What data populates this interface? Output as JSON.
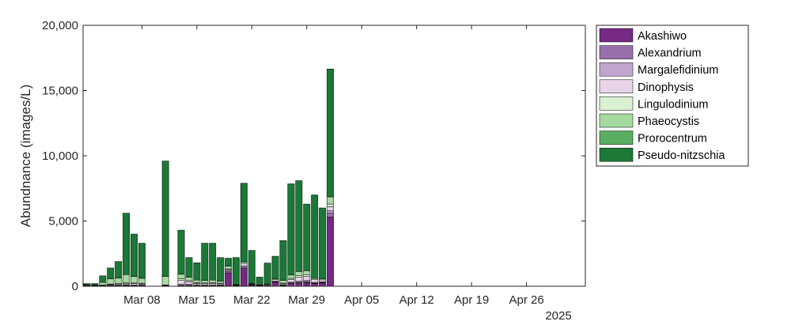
{
  "chart_data": {
    "type": "bar",
    "stacked": true,
    "ylabel": "Abundnance (images/L)",
    "ylim": [
      0,
      20000
    ],
    "yticks": [
      0,
      5000,
      10000,
      15000,
      20000
    ],
    "ytick_labels": [
      "0",
      "5,000",
      "10,000",
      "15,000",
      "20,000"
    ],
    "xlim": [
      "2025-03-01",
      "2025-05-03"
    ],
    "xticks": [
      "2025-03-08",
      "2025-03-15",
      "2025-03-22",
      "2025-03-29",
      "2025-04-05",
      "2025-04-12",
      "2025-04-19",
      "2025-04-26"
    ],
    "xtick_labels": [
      "Mar 08",
      "Mar 15",
      "Mar 22",
      "Mar 29",
      "Apr 05",
      "Apr 12",
      "Apr 19",
      "Apr 26"
    ],
    "x_secondary_label": "2025",
    "legend_position": "outside-top-right",
    "grid": false,
    "x": [
      "2025-03-01",
      "2025-03-02",
      "2025-03-03",
      "2025-03-04",
      "2025-03-05",
      "2025-03-06",
      "2025-03-07",
      "2025-03-08",
      "2025-03-11",
      "2025-03-13",
      "2025-03-14",
      "2025-03-15",
      "2025-03-16",
      "2025-03-17",
      "2025-03-18",
      "2025-03-19",
      "2025-03-20",
      "2025-03-21",
      "2025-03-22",
      "2025-03-23",
      "2025-03-24",
      "2025-03-25",
      "2025-03-26",
      "2025-03-27",
      "2025-03-28",
      "2025-03-29",
      "2025-03-30",
      "2025-03-31",
      "2025-04-01"
    ],
    "series": [
      {
        "name": "Akashiwo",
        "color": "#762a83",
        "values": [
          30,
          30,
          20,
          30,
          30,
          40,
          30,
          30,
          20,
          40,
          40,
          30,
          30,
          30,
          40,
          1000,
          20,
          1350,
          80,
          30,
          30,
          300,
          50,
          200,
          250,
          300,
          200,
          250,
          5300
        ]
      },
      {
        "name": "Alexandrium",
        "color": "#9970ab",
        "values": [
          20,
          10,
          10,
          20,
          20,
          30,
          20,
          20,
          10,
          30,
          30,
          20,
          20,
          20,
          20,
          100,
          10,
          100,
          20,
          10,
          20,
          50,
          20,
          50,
          60,
          60,
          40,
          40,
          300
        ]
      },
      {
        "name": "Margalefidinium",
        "color": "#c2a5cf",
        "values": [
          10,
          10,
          10,
          30,
          40,
          60,
          50,
          40,
          20,
          100,
          80,
          60,
          50,
          60,
          50,
          80,
          20,
          100,
          30,
          20,
          30,
          50,
          40,
          60,
          70,
          80,
          60,
          50,
          200
        ]
      },
      {
        "name": "Dinophysis",
        "color": "#e7d4e8",
        "values": [
          20,
          10,
          20,
          50,
          80,
          100,
          100,
          80,
          30,
          300,
          200,
          100,
          100,
          100,
          80,
          100,
          30,
          200,
          50,
          30,
          60,
          100,
          80,
          200,
          300,
          300,
          200,
          150,
          300
        ]
      },
      {
        "name": "Lingulodinium",
        "color": "#d9f0d3",
        "values": [
          10,
          10,
          30,
          40,
          50,
          60,
          50,
          40,
          20,
          100,
          80,
          60,
          50,
          60,
          50,
          50,
          30,
          100,
          40,
          20,
          30,
          60,
          50,
          100,
          150,
          150,
          100,
          80,
          200
        ]
      },
      {
        "name": "Phaeocystis",
        "color": "#a6dba0",
        "values": [
          50,
          40,
          200,
          400,
          400,
          600,
          500,
          400,
          650,
          350,
          250,
          200,
          200,
          200,
          150,
          200,
          50,
          0,
          0,
          0,
          0,
          0,
          200,
          250,
          300,
          300,
          0,
          0,
          550
        ]
      },
      {
        "name": "Prorocentrum",
        "color": "#5aae61",
        "values": [
          0,
          0,
          0,
          0,
          0,
          0,
          0,
          0,
          0,
          0,
          0,
          0,
          0,
          0,
          0,
          0,
          0,
          0,
          0,
          0,
          0,
          0,
          0,
          0,
          0,
          0,
          0,
          0,
          0
        ]
      },
      {
        "name": "Pseudo-nitzschia",
        "color": "#1b7837",
        "values": [
          60,
          100,
          510,
          830,
          1280,
          4710,
          3250,
          2690,
          8850,
          3380,
          1520,
          1330,
          2850,
          2830,
          1810,
          620,
          2040,
          6050,
          2530,
          590,
          1610,
          1740,
          3060,
          6990,
          6960,
          5110,
          6400,
          5430,
          9800
        ]
      }
    ]
  }
}
